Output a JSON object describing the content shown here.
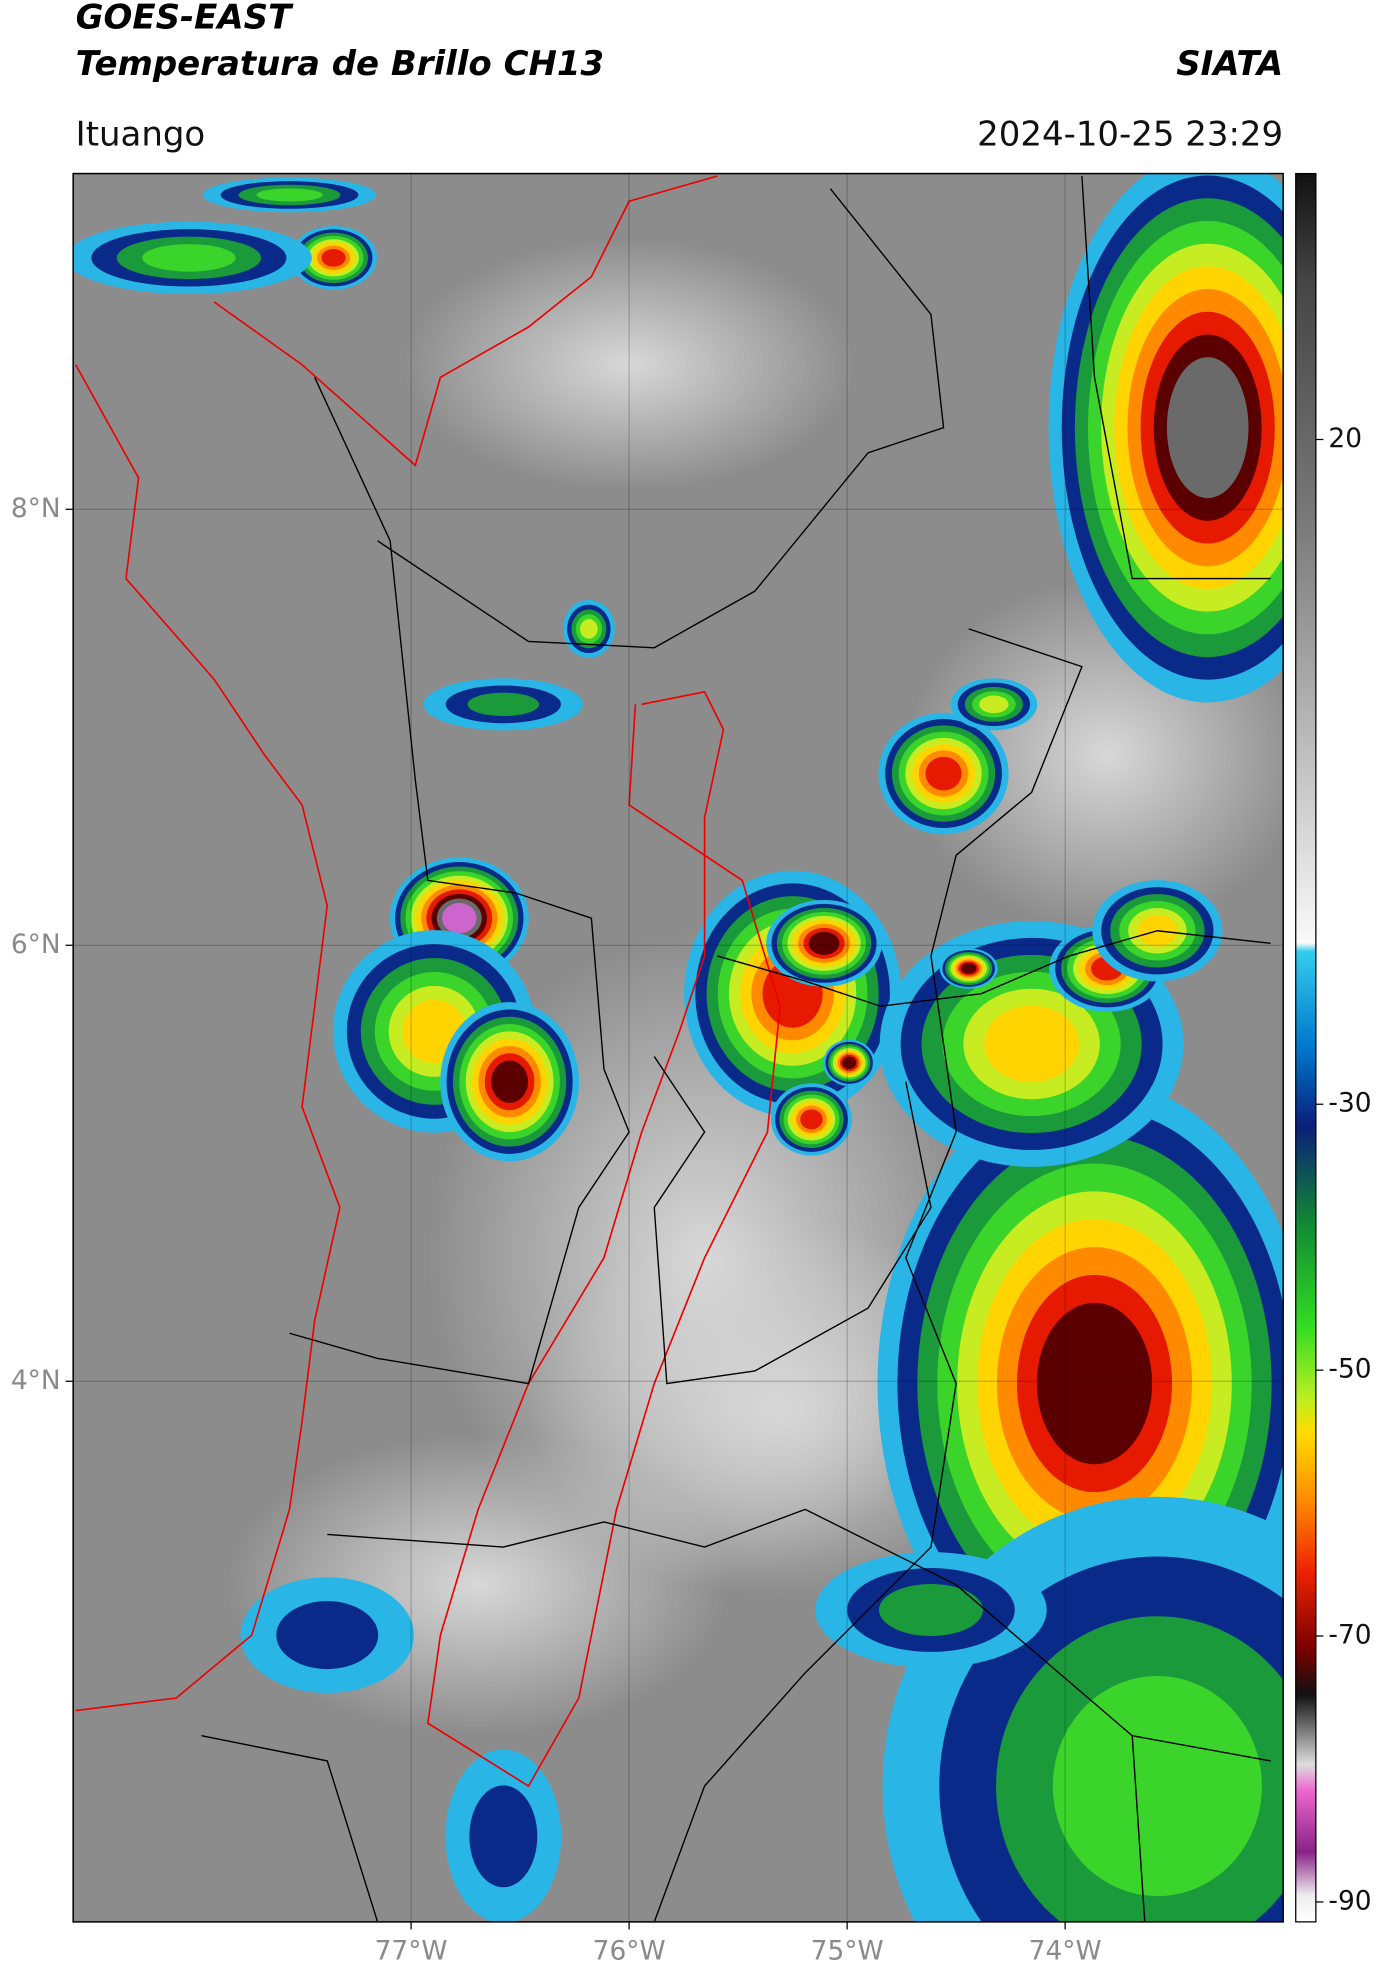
{
  "header": {
    "title": "GOES-EAST",
    "subtitle": "Temperatura de Brillo CH13",
    "source": "SIATA",
    "location": "Ituango",
    "datetime": "2024-10-25 23:29"
  },
  "map": {
    "lon_range": [
      -78.55,
      -73.0
    ],
    "lat_range": [
      1.52,
      9.54
    ],
    "lon_ticks": [
      {
        "value": -77,
        "label": "77°W"
      },
      {
        "value": -76,
        "label": "76°W"
      },
      {
        "value": -75,
        "label": "75°W"
      },
      {
        "value": -74,
        "label": "74°W"
      }
    ],
    "lat_ticks": [
      {
        "value": 8,
        "label": "8°N"
      },
      {
        "value": 6,
        "label": "6°N"
      },
      {
        "value": 4,
        "label": "4°N"
      }
    ]
  },
  "colorbar": {
    "range": [
      40,
      -91.5
    ],
    "ticks": [
      20,
      -30,
      -50,
      -70,
      -90
    ]
  }
}
